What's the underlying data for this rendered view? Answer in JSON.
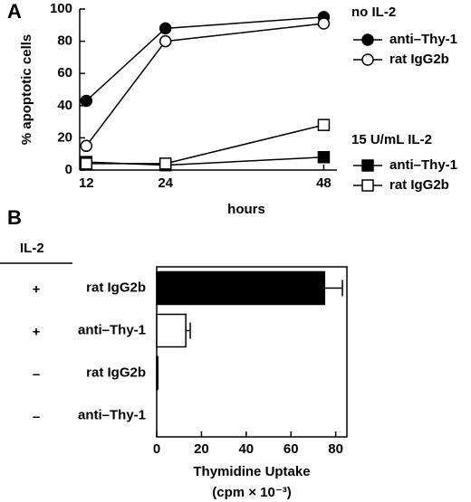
{
  "chart_data": [
    {
      "type": "line",
      "panel": "A",
      "x_label": "hours",
      "y_label": "% apoptotic cells",
      "xlim": [
        11,
        50
      ],
      "xticks": [
        12,
        24,
        48
      ],
      "ylim": [
        0,
        100
      ],
      "yticks": [
        0,
        20,
        40,
        60,
        80,
        100
      ],
      "x": [
        12,
        24,
        48
      ],
      "groups": [
        {
          "title": "no IL-2",
          "series": [
            {
              "name": "anti–Thy-1",
              "color": "#000000",
              "marker": "circle",
              "filled": true,
              "values": [
                43,
                88,
                95
              ]
            },
            {
              "name": "rat IgG2b",
              "color": "#000000",
              "marker": "circle",
              "filled": false,
              "values": [
                15,
                80,
                91
              ]
            }
          ]
        },
        {
          "title": "15 U/mL IL-2",
          "series": [
            {
              "name": "anti–Thy-1",
              "color": "#000000",
              "marker": "square",
              "filled": true,
              "values": [
                5,
                3,
                8
              ]
            },
            {
              "name": "rat IgG2b",
              "color": "#000000",
              "marker": "square",
              "filled": false,
              "values": [
                4,
                4,
                28
              ]
            }
          ]
        }
      ]
    },
    {
      "type": "hbar",
      "panel": "B",
      "row_header": "IL-2",
      "x_label": [
        "Thymidine Uptake",
        "(cpm × 10⁻³)"
      ],
      "xlim": [
        0,
        85
      ],
      "xticks": [
        0,
        20,
        40,
        60,
        80
      ],
      "il2": [
        "+",
        "+",
        "–",
        "–"
      ],
      "categories": [
        "rat IgG2b",
        "anti–Thy-1",
        "rat IgG2b",
        "anti–Thy-1"
      ],
      "values": [
        75,
        13,
        0.5,
        0
      ],
      "errors": [
        8,
        2,
        null,
        null
      ],
      "colors": [
        "#000000",
        "#ffffff",
        "#000000",
        "#ffffff"
      ]
    }
  ]
}
